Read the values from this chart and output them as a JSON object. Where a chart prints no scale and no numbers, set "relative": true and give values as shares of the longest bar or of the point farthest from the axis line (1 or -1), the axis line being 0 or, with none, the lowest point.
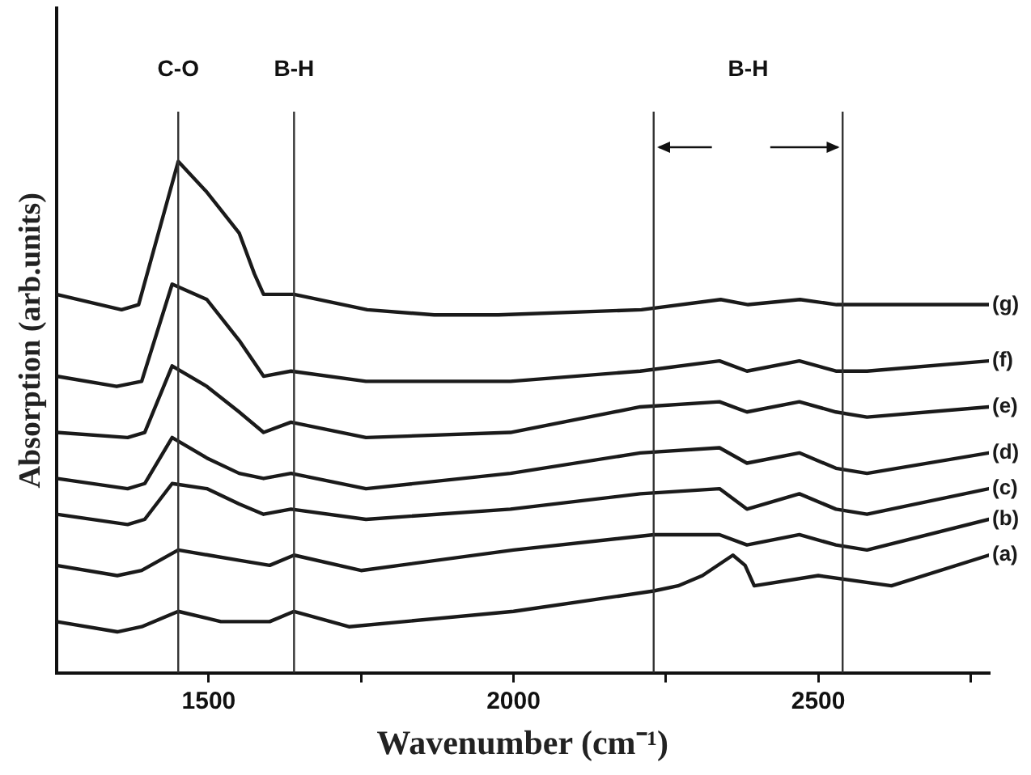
{
  "chart_data": {
    "type": "line",
    "relative": true,
    "xlabel": "Wavenumber (cm⁻¹)",
    "ylabel": "Absorption (arb.units)",
    "xlim": [
      1250,
      2780
    ],
    "xticks": [
      1500,
      {
        "value": 1750,
        "label": null
      },
      2000,
      {
        "value": 2250,
        "label": null
      },
      2500,
      {
        "value": 2750,
        "label": null
      }
    ],
    "tick_labels": "x",
    "grid": false,
    "legend": false,
    "marker": "none",
    "line_style": "solid",
    "series": [
      {
        "name": "(a)",
        "color": "#1a1a1a",
        "x": [
          1250,
          1350,
          1390,
          1450,
          1520,
          1600,
          1640,
          1730,
          2000,
          2230,
          2270,
          2310,
          2360,
          2380,
          2395,
          2500,
          2620,
          2780
        ],
        "values": [
          0.1,
          0.08,
          0.09,
          0.12,
          0.1,
          0.1,
          0.12,
          0.09,
          0.12,
          0.16,
          0.17,
          0.19,
          0.23,
          0.21,
          0.17,
          0.19,
          0.17,
          0.23
        ]
      },
      {
        "name": "(b)",
        "color": "#1a1a1a",
        "x": [
          1250,
          1350,
          1390,
          1450,
          1500,
          1550,
          1600,
          1640,
          1750,
          2000,
          2230,
          2338,
          2383,
          2469,
          2529,
          2580,
          2780
        ],
        "values": [
          0.21,
          0.19,
          0.2,
          0.24,
          0.23,
          0.22,
          0.21,
          0.23,
          0.2,
          0.24,
          0.27,
          0.27,
          0.25,
          0.27,
          0.25,
          0.24,
          0.3
        ]
      },
      {
        "name": "(c)",
        "color": "#1a1a1a",
        "x": [
          1250,
          1367,
          1395,
          1440,
          1497,
          1550,
          1590,
          1635,
          1758,
          1995,
          2208,
          2338,
          2383,
          2469,
          2529,
          2580,
          2780
        ],
        "values": [
          0.31,
          0.29,
          0.3,
          0.37,
          0.36,
          0.33,
          0.31,
          0.32,
          0.3,
          0.32,
          0.35,
          0.36,
          0.32,
          0.35,
          0.32,
          0.31,
          0.36
        ]
      },
      {
        "name": "(d)",
        "color": "#1a1a1a",
        "x": [
          1250,
          1367,
          1395,
          1440,
          1497,
          1550,
          1590,
          1635,
          1758,
          1995,
          2208,
          2338,
          2383,
          2469,
          2529,
          2580,
          2780
        ],
        "values": [
          0.38,
          0.36,
          0.37,
          0.46,
          0.42,
          0.39,
          0.38,
          0.39,
          0.36,
          0.39,
          0.43,
          0.44,
          0.41,
          0.43,
          0.4,
          0.39,
          0.43
        ]
      },
      {
        "name": "(e)",
        "color": "#1a1a1a",
        "x": [
          1250,
          1367,
          1395,
          1440,
          1497,
          1550,
          1590,
          1635,
          1758,
          1995,
          2208,
          2338,
          2383,
          2469,
          2529,
          2580,
          2780
        ],
        "values": [
          0.47,
          0.46,
          0.47,
          0.6,
          0.56,
          0.51,
          0.47,
          0.49,
          0.46,
          0.47,
          0.52,
          0.53,
          0.51,
          0.53,
          0.51,
          0.5,
          0.52
        ]
      },
      {
        "name": "(f)",
        "color": "#1a1a1a",
        "x": [
          1250,
          1349,
          1390,
          1440,
          1497,
          1550,
          1590,
          1635,
          1758,
          1995,
          2208,
          2338,
          2383,
          2469,
          2529,
          2580,
          2780
        ],
        "values": [
          0.58,
          0.56,
          0.57,
          0.76,
          0.73,
          0.65,
          0.58,
          0.59,
          0.57,
          0.57,
          0.59,
          0.61,
          0.59,
          0.61,
          0.59,
          0.59,
          0.61
        ]
      },
      {
        "name": "(g)",
        "color": "#1a1a1a",
        "x": [
          1250,
          1357,
          1385,
          1450,
          1497,
          1550,
          1575,
          1590,
          1640,
          1760,
          1870,
          1975,
          2210,
          2340,
          2385,
          2470,
          2530,
          2780
        ],
        "values": [
          0.74,
          0.71,
          0.72,
          1.0,
          0.94,
          0.86,
          0.78,
          0.74,
          0.74,
          0.71,
          0.7,
          0.7,
          0.71,
          0.73,
          0.72,
          0.73,
          0.72,
          0.72
        ]
      }
    ],
    "ref_lines": [
      {
        "axis": "x",
        "value": 1450,
        "label": "C-O",
        "color": "#333333"
      },
      {
        "axis": "x",
        "value": 1640,
        "label": "B-H",
        "color": "#333333"
      },
      {
        "axis": "x",
        "value": 2230,
        "color": "#333333"
      },
      {
        "axis": "x",
        "value": 2540,
        "color": "#333333"
      }
    ],
    "annotations": [
      "B-H"
    ]
  }
}
